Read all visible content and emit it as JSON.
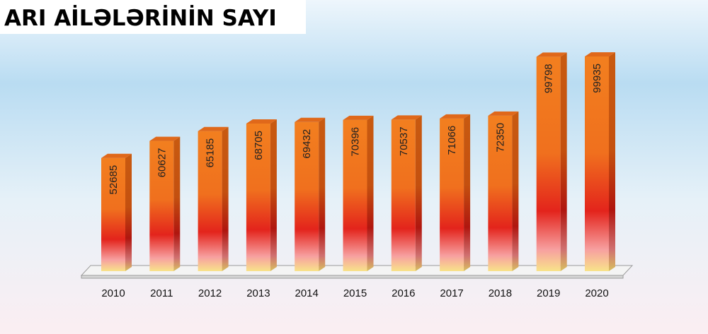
{
  "chart_data": {
    "type": "bar",
    "title": "ARI AİLƏLƏRİNİN SAYI",
    "categories": [
      "2010",
      "2011",
      "2012",
      "2013",
      "2014",
      "2015",
      "2016",
      "2017",
      "2018",
      "2019",
      "2020"
    ],
    "values": [
      52685,
      60627,
      65185,
      68705,
      69432,
      70396,
      70537,
      71066,
      72350,
      99798,
      99935
    ],
    "color": "#f07a1e"
  }
}
